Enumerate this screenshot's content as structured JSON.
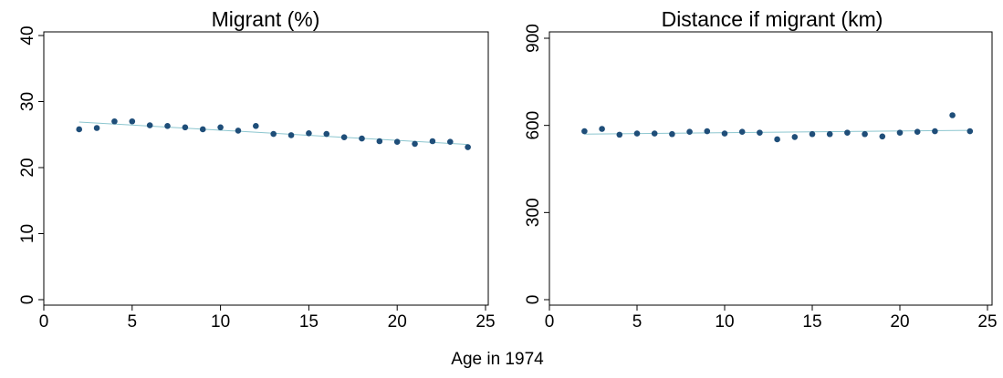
{
  "figure": {
    "shared_xlabel": "Age in 1974"
  },
  "chart_data": [
    {
      "type": "scatter",
      "title": "Migrant (%)",
      "xlabel": "",
      "ylabel": "",
      "xlim": [
        0,
        25
      ],
      "ylim": [
        0,
        40
      ],
      "xticks": [
        0,
        5,
        10,
        15,
        20,
        25
      ],
      "yticks": [
        0,
        10,
        20,
        30,
        40
      ],
      "grid": false,
      "legend": "none",
      "marker_color": "#1f4e79",
      "fit_color": "#8cc6cf",
      "x": [
        2,
        3,
        4,
        5,
        6,
        7,
        8,
        9,
        10,
        11,
        12,
        13,
        14,
        15,
        16,
        17,
        18,
        19,
        20,
        21,
        22,
        23,
        24
      ],
      "y": [
        25.8,
        26.0,
        27.0,
        27.0,
        26.4,
        26.3,
        26.1,
        25.8,
        26.1,
        25.6,
        26.3,
        25.1,
        24.9,
        25.2,
        25.1,
        24.6,
        24.4,
        24.0,
        23.9,
        23.6,
        24.0,
        23.9,
        23.1
      ],
      "fit": {
        "x": [
          2,
          24
        ],
        "y": [
          26.9,
          23.5
        ]
      }
    },
    {
      "type": "scatter",
      "title": "Distance if migrant (km)",
      "xlabel": "",
      "ylabel": "",
      "xlim": [
        0,
        25
      ],
      "ylim": [
        0,
        900
      ],
      "xticks": [
        0,
        5,
        10,
        15,
        20,
        25
      ],
      "yticks": [
        0,
        300,
        600,
        900
      ],
      "grid": false,
      "legend": "none",
      "marker_color": "#1f4e79",
      "fit_color": "#8cc6cf",
      "x": [
        2,
        3,
        4,
        5,
        6,
        7,
        8,
        9,
        10,
        11,
        12,
        13,
        14,
        15,
        16,
        17,
        18,
        19,
        20,
        21,
        22,
        23,
        24
      ],
      "y": [
        580,
        588,
        568,
        572,
        572,
        570,
        578,
        580,
        572,
        578,
        575,
        552,
        560,
        570,
        570,
        575,
        570,
        562,
        575,
        578,
        580,
        635,
        580
      ],
      "fit": {
        "x": [
          2,
          24
        ],
        "y": [
          570,
          583
        ]
      }
    }
  ]
}
